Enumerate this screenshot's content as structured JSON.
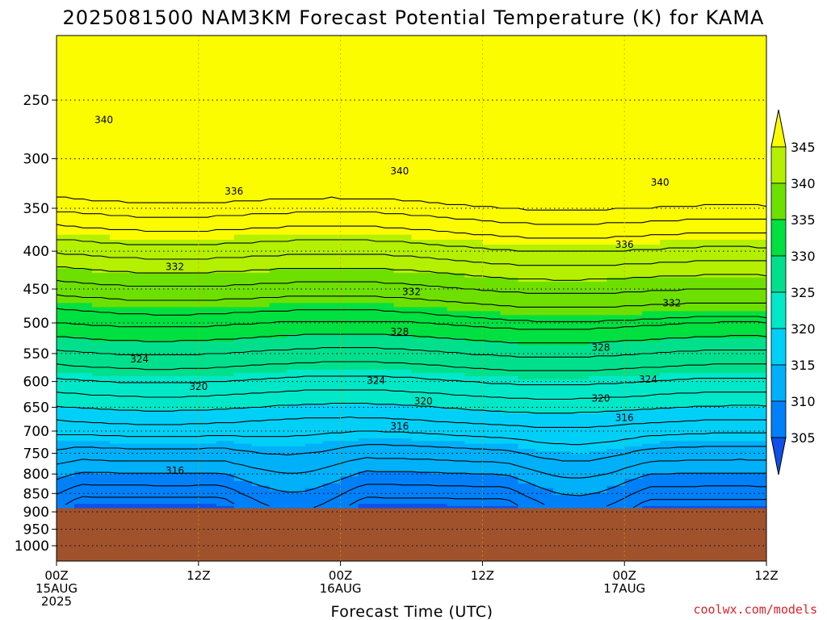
{
  "chart_data": {
    "type": "contour",
    "title": "2025081500 NAM3KM Forecast Potential Temperature (K) for KAMA",
    "xlabel": "Forecast Time (UTC)",
    "ylabel": "",
    "credit": "coolwx.com/models",
    "x_ticks": [
      {
        "hour": 0,
        "lines": [
          "00Z",
          "15AUG",
          "2025"
        ]
      },
      {
        "hour": 12,
        "lines": [
          "12Z"
        ]
      },
      {
        "hour": 24,
        "lines": [
          "00Z",
          "16AUG"
        ]
      },
      {
        "hour": 36,
        "lines": [
          "12Z"
        ]
      },
      {
        "hour": 48,
        "lines": [
          "00Z",
          "17AUG"
        ]
      },
      {
        "hour": 60,
        "lines": [
          "12Z"
        ]
      }
    ],
    "xlim": [
      0,
      60
    ],
    "y_ticks": [
      250,
      300,
      350,
      400,
      450,
      500,
      550,
      600,
      650,
      700,
      750,
      800,
      850,
      900,
      950,
      1000
    ],
    "ylim_hpa": [
      200,
      1050
    ],
    "y_scale": "log-pressure",
    "surface_pressure_hpa": 890,
    "colorbar": {
      "labels": [
        345,
        340,
        335,
        330,
        325,
        320,
        315,
        310,
        305
      ],
      "colors": [
        "#fcfc00",
        "#b4f000",
        "#6ee000",
        "#00e040",
        "#00e08c",
        "#00e8c8",
        "#00d0f8",
        "#00b0f8",
        "#0080f8",
        "#1050e8"
      ]
    },
    "contour_interval_k": 2,
    "contour_labels": [
      {
        "value": "340",
        "hour": 4,
        "hpa": 266
      },
      {
        "value": "336",
        "hour": 15,
        "hpa": 332
      },
      {
        "value": "340",
        "hour": 29,
        "hpa": 312
      },
      {
        "value": "340",
        "hour": 51,
        "hpa": 323
      },
      {
        "value": "336",
        "hour": 48,
        "hpa": 392
      },
      {
        "value": "332",
        "hour": 10,
        "hpa": 420
      },
      {
        "value": "332",
        "hour": 30,
        "hpa": 454
      },
      {
        "value": "332",
        "hour": 52,
        "hpa": 470
      },
      {
        "value": "328",
        "hour": 29,
        "hpa": 514
      },
      {
        "value": "328",
        "hour": 46,
        "hpa": 540
      },
      {
        "value": "324",
        "hour": 7,
        "hpa": 560
      },
      {
        "value": "324",
        "hour": 27,
        "hpa": 598
      },
      {
        "value": "324",
        "hour": 50,
        "hpa": 596
      },
      {
        "value": "320",
        "hour": 12,
        "hpa": 610
      },
      {
        "value": "320",
        "hour": 31,
        "hpa": 638
      },
      {
        "value": "320",
        "hour": 46,
        "hpa": 632
      },
      {
        "value": "316",
        "hour": 29,
        "hpa": 690
      },
      {
        "value": "316",
        "hour": 48,
        "hpa": 672
      },
      {
        "value": "316",
        "hour": 10,
        "hpa": 792
      }
    ]
  }
}
